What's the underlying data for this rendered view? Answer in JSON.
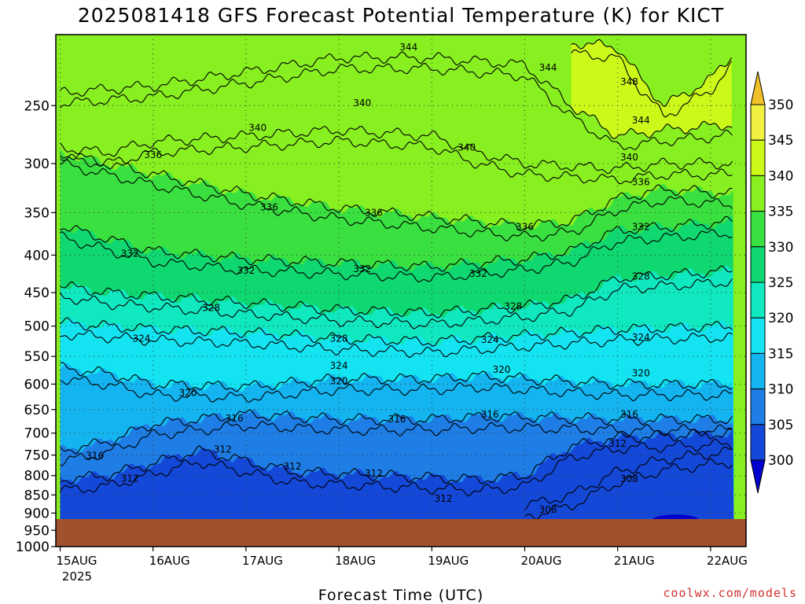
{
  "chart_data": {
    "type": "heatmap",
    "title": "2025081418 GFS Forecast Potential Temperature (K) for KICT",
    "xlabel": "Forecast Time (UTC)",
    "ylabel": "",
    "credit": "coolwx.com/models",
    "x_ticks": [
      "15AUG",
      "16AUG",
      "17AUG",
      "18AUG",
      "19AUG",
      "20AUG",
      "21AUG",
      "22AUG"
    ],
    "x_year_label": "2025",
    "y_ticks": [
      250,
      300,
      350,
      400,
      450,
      500,
      550,
      600,
      650,
      700,
      750,
      800,
      850,
      900,
      950,
      1000
    ],
    "y_range": [
      1000,
      200
    ],
    "y_scale": "log",
    "grid": true,
    "colorbar": {
      "labels": [
        300,
        305,
        310,
        315,
        320,
        325,
        330,
        335,
        340,
        345,
        350
      ],
      "colors": [
        "#0000cc",
        "#1448d8",
        "#1e7ee6",
        "#14b4f0",
        "#14e4f2",
        "#10e8c0",
        "#10d870",
        "#3ae040",
        "#88f020",
        "#ccf81a",
        "#f0f040",
        "#f0c028"
      ]
    },
    "ground_color": "#a0522d",
    "contour_interval": 2,
    "series": [
      {
        "name": "348",
        "level_hpa": [
          205,
          208,
          230,
          250,
          230,
          212
        ],
        "x": [
          "20AUG 12",
          "21AUG 00",
          "21AUG 06",
          "21AUG 12",
          "22AUG 00",
          "22AUG 06"
        ]
      },
      {
        "name": "344",
        "level_hpa": [
          240,
          235,
          225,
          220,
          215,
          215,
          220,
          250,
          275,
          270,
          265
        ],
        "x": [
          "15AUG",
          "16AUG",
          "17AUG",
          "17AUG 12",
          "18AUG",
          "19AUG",
          "20AUG",
          "20AUG 12",
          "21AUG",
          "21AUG 12",
          "22AUG 06"
        ]
      },
      {
        "name": "340",
        "level_hpa": [
          285,
          290,
          280,
          275,
          270,
          275,
          290,
          300,
          305,
          300,
          300
        ],
        "x": [
          "15AUG",
          "15AUG 12",
          "16AUG",
          "17AUG",
          "18AUG",
          "19AUG",
          "19AUG 12",
          "20AUG",
          "21AUG",
          "21AUG 12",
          "22AUG 06"
        ]
      },
      {
        "name": "336",
        "level_hpa": [
          290,
          300,
          310,
          330,
          345,
          350,
          355,
          365,
          360,
          335,
          325,
          330
        ],
        "x": [
          "15AUG",
          "15AUG 12",
          "16AUG",
          "17AUG",
          "18AUG",
          "18AUG 12",
          "19AUG",
          "20AUG",
          "20AUG 12",
          "21AUG",
          "21AUG 12",
          "22AUG 06"
        ]
      },
      {
        "name": "332",
        "level_hpa": [
          365,
          380,
          395,
          405,
          410,
          415,
          410,
          405,
          395,
          370,
          360
        ],
        "x": [
          "15AUG",
          "15AUG 12",
          "16AUG",
          "17AUG",
          "18AUG",
          "19AUG",
          "19AUG 12",
          "20AUG",
          "20AUG 12",
          "21AUG",
          "22AUG 06"
        ]
      },
      {
        "name": "328",
        "level_hpa": [
          440,
          450,
          455,
          465,
          475,
          480,
          470,
          460,
          430,
          420
        ],
        "x": [
          "15AUG",
          "15AUG 12",
          "16AUG",
          "17AUG",
          "18AUG",
          "19AUG",
          "20AUG",
          "20AUG 12",
          "21AUG",
          "22AUG 06"
        ]
      },
      {
        "name": "324",
        "level_hpa": [
          495,
          500,
          505,
          510,
          520,
          525,
          520,
          515,
          510,
          505,
          500
        ],
        "x": [
          "15AUG",
          "15AUG 12",
          "16AUG",
          "17AUG",
          "18AUG",
          "19AUG",
          "19AUG 12",
          "20AUG",
          "20AUG 12",
          "21AUG",
          "22AUG 06"
        ]
      },
      {
        "name": "320",
        "level_hpa": [
          570,
          580,
          600,
          605,
          590,
          590,
          585,
          590,
          600,
          600
        ],
        "x": [
          "15AUG",
          "15AUG 12",
          "16AUG",
          "17AUG",
          "18AUG",
          "19AUG",
          "19AUG 12",
          "20AUG",
          "21AUG",
          "22AUG 06"
        ]
      },
      {
        "name": "316",
        "level_hpa": [
          740,
          720,
          680,
          660,
          670,
          670,
          665,
          665,
          670,
          670
        ],
        "x": [
          "15AUG",
          "15AUG 12",
          "16AUG",
          "17AUG",
          "18AUG",
          "19AUG",
          "19AUG 12",
          "20AUG",
          "21AUG",
          "22AUG 06"
        ]
      },
      {
        "name": "312",
        "level_hpa": [
          810,
          800,
          740,
          790,
          800,
          810,
          800,
          730,
          710,
          700
        ],
        "x": [
          "15AUG",
          "15AUG 12",
          "16AUG 12",
          "17AUG 12",
          "18AUG 12",
          "19AUG 12",
          "20AUG",
          "20AUG 12",
          "21AUG",
          "22AUG 06"
        ]
      },
      {
        "name": "308",
        "level_hpa": [
          880,
          850,
          790,
          760,
          740
        ],
        "x": [
          "20AUG",
          "20AUG 12",
          "21AUG",
          "21AUG 12",
          "22AUG 06"
        ]
      }
    ],
    "contour_labels": [
      {
        "text": "344",
        "x": "18AUG 18",
        "p": 208
      },
      {
        "text": "344",
        "x": "20AUG 06",
        "p": 222
      },
      {
        "text": "348",
        "x": "21AUG 03",
        "p": 232
      },
      {
        "text": "340",
        "x": "18AUG 06",
        "p": 248
      },
      {
        "text": "340",
        "x": "17AUG 03",
        "p": 268
      },
      {
        "text": "344",
        "x": "21AUG 06",
        "p": 262
      },
      {
        "text": "336",
        "x": "16AUG",
        "p": 292
      },
      {
        "text": "340",
        "x": "19AUG 09",
        "p": 285
      },
      {
        "text": "340",
        "x": "21AUG 03",
        "p": 294
      },
      {
        "text": "336",
        "x": "21AUG 06",
        "p": 318
      },
      {
        "text": "336",
        "x": "17AUG 06",
        "p": 344
      },
      {
        "text": "336",
        "x": "18AUG 09",
        "p": 350
      },
      {
        "text": "336",
        "x": "20AUG",
        "p": 366
      },
      {
        "text": "332",
        "x": "21AUG 06",
        "p": 366
      },
      {
        "text": "332",
        "x": "15AUG 18",
        "p": 398
      },
      {
        "text": "332",
        "x": "17AUG",
        "p": 420
      },
      {
        "text": "332",
        "x": "18AUG 06",
        "p": 418
      },
      {
        "text": "332",
        "x": "19AUG 12",
        "p": 424
      },
      {
        "text": "328",
        "x": "21AUG 06",
        "p": 428
      },
      {
        "text": "328",
        "x": "16AUG 15",
        "p": 472
      },
      {
        "text": "328",
        "x": "19AUG 21",
        "p": 470
      },
      {
        "text": "324",
        "x": "15AUG 21",
        "p": 520
      },
      {
        "text": "328",
        "x": "18AUG",
        "p": 520
      },
      {
        "text": "324",
        "x": "19AUG 15",
        "p": 522
      },
      {
        "text": "324",
        "x": "21AUG 06",
        "p": 518
      },
      {
        "text": "324",
        "x": "18AUG",
        "p": 566
      },
      {
        "text": "320",
        "x": "19AUG 18",
        "p": 573
      },
      {
        "text": "320",
        "x": "18AUG",
        "p": 594
      },
      {
        "text": "320",
        "x": "21AUG 06",
        "p": 580
      },
      {
        "text": "320",
        "x": "16AUG 09",
        "p": 617
      },
      {
        "text": "316",
        "x": "16AUG 21",
        "p": 668
      },
      {
        "text": "316",
        "x": "18AUG 15",
        "p": 670
      },
      {
        "text": "316",
        "x": "19AUG 15",
        "p": 660
      },
      {
        "text": "316",
        "x": "21AUG 03",
        "p": 660
      },
      {
        "text": "312",
        "x": "16AUG 18",
        "p": 737
      },
      {
        "text": "312",
        "x": "21AUG",
        "p": 723
      },
      {
        "text": "316",
        "x": "15AUG 09",
        "p": 752
      },
      {
        "text": "312",
        "x": "17AUG 12",
        "p": 777
      },
      {
        "text": "312",
        "x": "15AUG 18",
        "p": 807
      },
      {
        "text": "312",
        "x": "18AUG 09",
        "p": 795
      },
      {
        "text": "308",
        "x": "21AUG 03",
        "p": 808
      },
      {
        "text": "312",
        "x": "19AUG 03",
        "p": 860
      },
      {
        "text": "308",
        "x": "20AUG 06",
        "p": 890
      }
    ]
  }
}
